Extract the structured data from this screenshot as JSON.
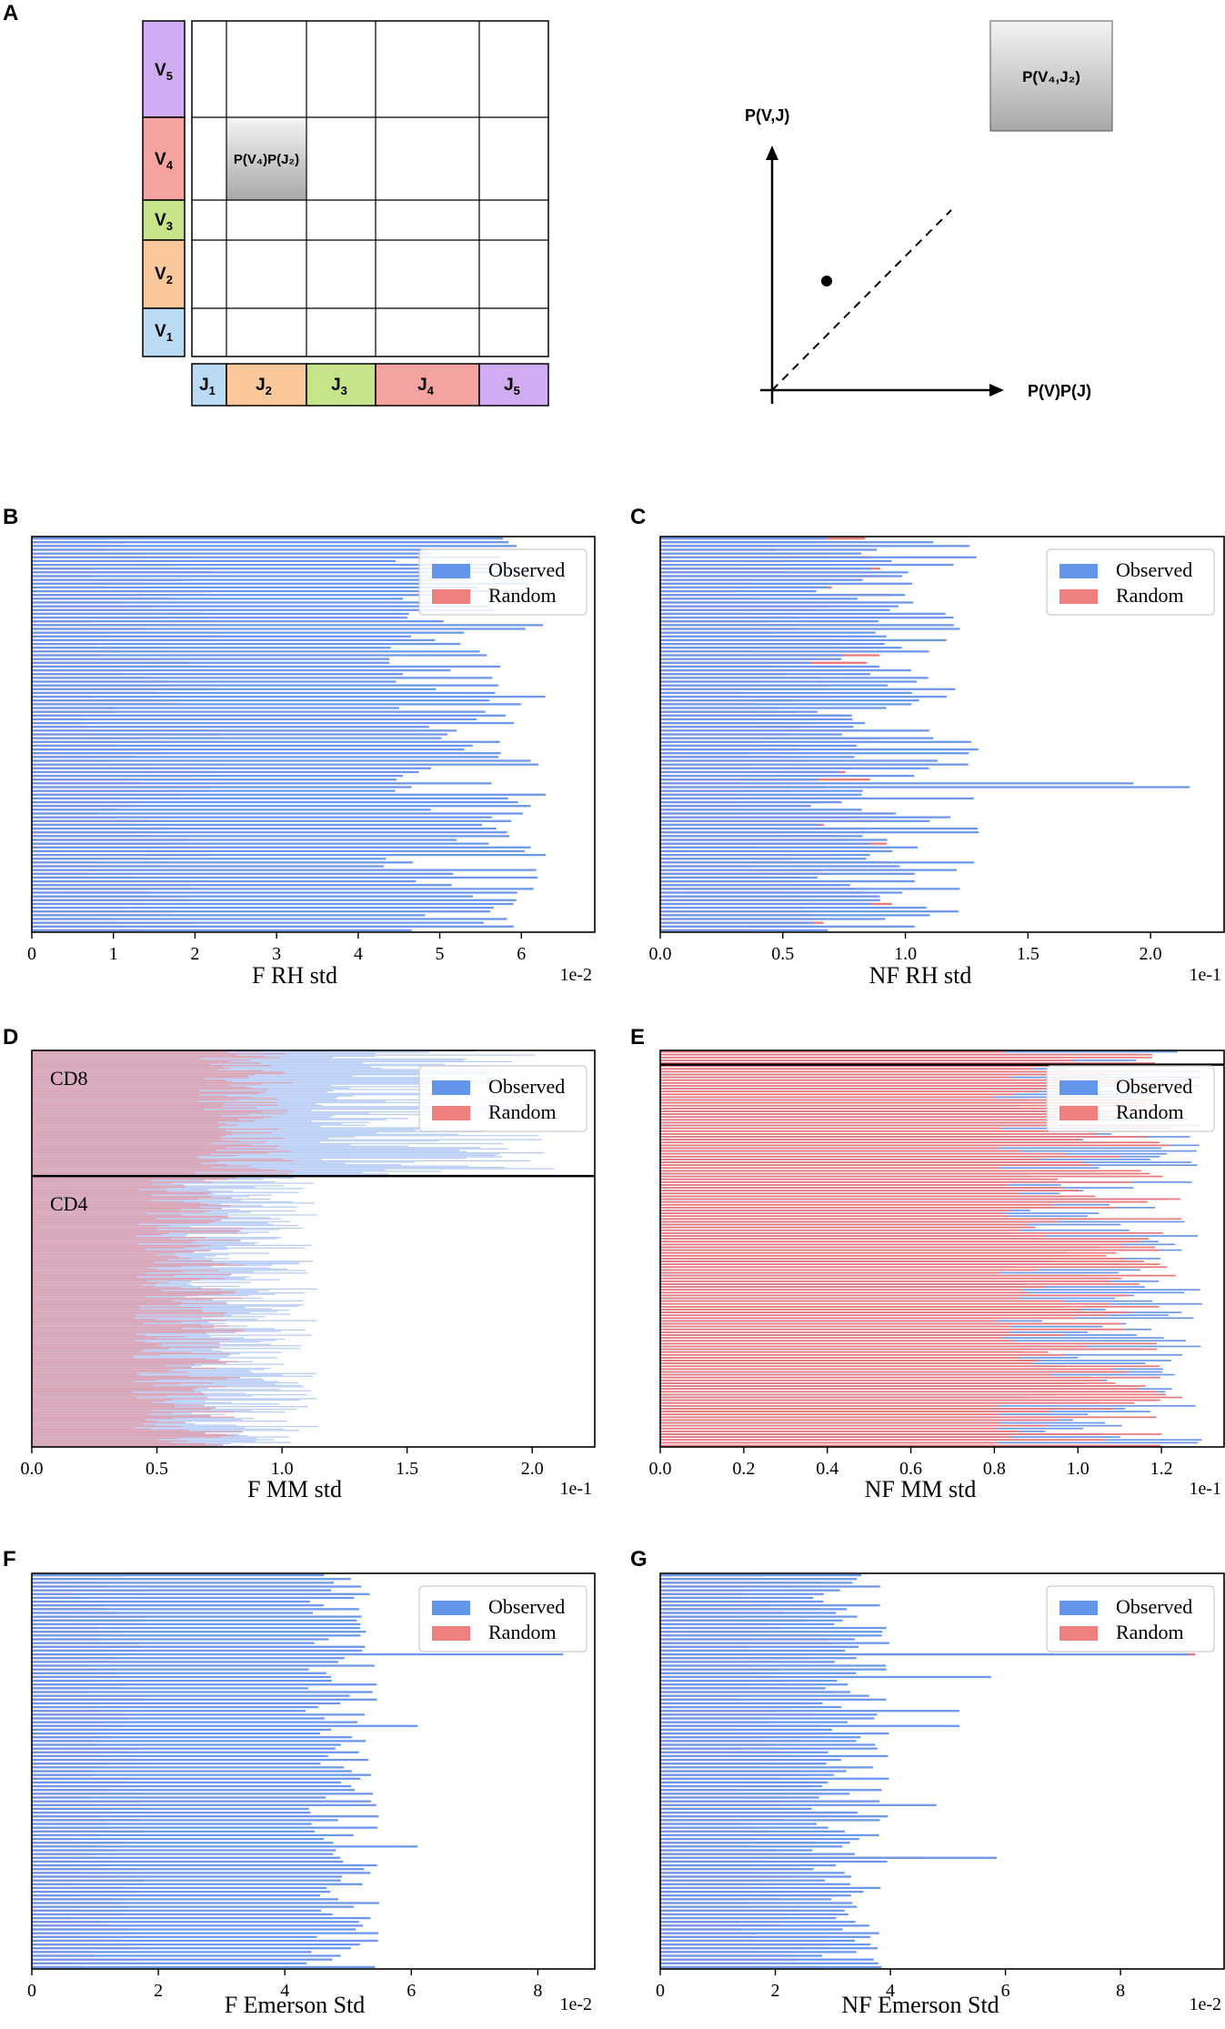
{
  "schematic": {
    "panel_label": "A",
    "v_labels": [
      {
        "base": "V",
        "sub": "5",
        "color": "#d0acf2"
      },
      {
        "base": "V",
        "sub": "4",
        "color": "#f4a3a1"
      },
      {
        "base": "V",
        "sub": "3",
        "color": "#c6e58a"
      },
      {
        "base": "V",
        "sub": "2",
        "color": "#fac89a"
      },
      {
        "base": "V",
        "sub": "1",
        "color": "#bbdaf3"
      }
    ],
    "j_labels": [
      {
        "base": "J",
        "sub": "1",
        "color": "#bbdaf3"
      },
      {
        "base": "J",
        "sub": "2",
        "color": "#fac89a"
      },
      {
        "base": "J",
        "sub": "3",
        "color": "#c6e58a"
      },
      {
        "base": "J",
        "sub": "4",
        "color": "#f4a3a1"
      },
      {
        "base": "J",
        "sub": "5",
        "color": "#d0acf2"
      }
    ],
    "highlight_cell": {
      "row": 2,
      "col": 1
    },
    "cell_text": "P(V₄)P(J₂)",
    "box_text": "P(V₄,J₂)",
    "y_axis_label": "P(V,J)",
    "x_axis_label": "P(V)P(J)"
  },
  "legend": {
    "observed": "Observed",
    "random": "Random"
  },
  "colors": {
    "observed": "#6c97ea",
    "random": "#ec7778",
    "observed_legend": "#6495ed",
    "random_legend": "#f08080"
  },
  "chart_data": [
    {
      "panel": "B",
      "type": "bar",
      "orientation": "horizontal",
      "n_rows": 105,
      "xlabel": "F RH std",
      "exponent_label": "1e-2",
      "xlim": [
        0,
        6.9
      ],
      "xticks": [
        0,
        1,
        2,
        3,
        4,
        5,
        6
      ],
      "xtick_labels": [
        "0",
        "1",
        "2",
        "3",
        "4",
        "5",
        "6"
      ],
      "observed_range": [
        4.3,
        6.3
      ],
      "random_range": [
        0.6,
        2.3
      ],
      "spikes": [],
      "groups": [],
      "random_on_top": false
    },
    {
      "panel": "C",
      "type": "bar",
      "orientation": "horizontal",
      "n_rows": 105,
      "xlabel": "NF RH std",
      "exponent_label": "1e-1",
      "xlim": [
        0,
        2.3
      ],
      "xticks": [
        0,
        0.5,
        1,
        1.5,
        2
      ],
      "xtick_labels": [
        "0.0",
        "0.5",
        "1.0",
        "1.5",
        "2.0"
      ],
      "observed_range": [
        0.6,
        1.3
      ],
      "random_range": [
        0.3,
        0.95
      ],
      "spikes": [
        {
          "row": 66,
          "observed": 2.16
        },
        {
          "row": 65,
          "observed": 1.93
        }
      ],
      "groups": [],
      "random_on_top": false
    },
    {
      "panel": "D",
      "type": "bar",
      "orientation": "horizontal",
      "n_rows": 300,
      "xlabel": "F MM std",
      "exponent_label": "1e-1",
      "xlim": [
        0,
        2.25
      ],
      "xticks": [
        0,
        0.5,
        1,
        1.5,
        2
      ],
      "xtick_labels": [
        "0.0",
        "0.5",
        "1.0",
        "1.5",
        "2.0"
      ],
      "observed_range": [
        0.55,
        2.1
      ],
      "random_range": [
        0.4,
        1.0
      ],
      "spikes": [],
      "groups": [
        {
          "label": "CD8",
          "row_start": 0,
          "row_end": 95
        },
        {
          "label": "CD4",
          "row_start": 95,
          "row_end": 300
        }
      ],
      "random_on_top": true
    },
    {
      "panel": "E",
      "type": "bar",
      "orientation": "horizontal",
      "n_rows": 140,
      "xlabel": "NF MM std",
      "exponent_label": "1e-1",
      "xlim": [
        0,
        1.35
      ],
      "xticks": [
        0,
        0.2,
        0.4,
        0.6,
        0.8,
        1.0,
        1.2
      ],
      "xtick_labels": [
        "0.0",
        "0.2",
        "0.4",
        "0.6",
        "0.8",
        "1.0",
        "1.2"
      ],
      "observed_range": [
        0.85,
        1.3
      ],
      "random_range": [
        0.8,
        1.25
      ],
      "spikes": [],
      "groups": [
        {
          "label": "",
          "row_start": 0,
          "row_end": 5
        },
        {
          "label": "",
          "row_start": 5,
          "row_end": 140
        }
      ],
      "random_on_top": true
    },
    {
      "panel": "F",
      "type": "bar",
      "orientation": "horizontal",
      "n_rows": 105,
      "xlabel": "F Emerson Std",
      "exponent_label": "1e-2",
      "xlim": [
        0,
        8.9
      ],
      "xticks": [
        0,
        2,
        4,
        6,
        8
      ],
      "xtick_labels": [
        "0",
        "2",
        "4",
        "6",
        "8"
      ],
      "observed_range": [
        4.3,
        5.5
      ],
      "random_range": [
        0.6,
        1.8
      ],
      "spikes": [
        {
          "row": 21,
          "observed": 8.4
        },
        {
          "row": 72,
          "observed": 6.1
        },
        {
          "row": 40,
          "observed": 6.1
        }
      ],
      "groups": [],
      "random_on_top": false
    },
    {
      "panel": "G",
      "type": "bar",
      "orientation": "horizontal",
      "n_rows": 105,
      "xlabel": "NF Emerson Std",
      "exponent_label": "1e-2",
      "xlim": [
        0,
        9.8
      ],
      "xticks": [
        0,
        2,
        4,
        6,
        8
      ],
      "xtick_labels": [
        "0",
        "2",
        "4",
        "6",
        "8"
      ],
      "observed_range": [
        2.6,
        4.0
      ],
      "random_range": [
        1.3,
        3.0
      ],
      "spikes": [
        {
          "row": 21,
          "observed": 9.2,
          "random": 9.3
        },
        {
          "row": 75,
          "observed": 5.85,
          "random": 4.6
        },
        {
          "row": 40,
          "observed": 5.2
        },
        {
          "row": 27,
          "observed": 5.75
        },
        {
          "row": 61,
          "observed": 4.8
        },
        {
          "row": 36,
          "observed": 5.2
        }
      ],
      "groups": [],
      "random_on_top": false
    }
  ]
}
